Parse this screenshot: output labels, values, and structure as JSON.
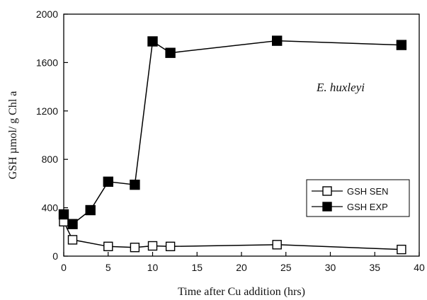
{
  "chart_data": {
    "type": "line",
    "xlabel": "Time after Cu addition (hrs)",
    "ylabel": "GSH µmol/ g Chl a",
    "annotation": "E. huxleyi",
    "xlim": [
      0,
      40
    ],
    "ylim": [
      0,
      2000
    ],
    "xticks": [
      0,
      5,
      10,
      15,
      20,
      25,
      30,
      35,
      40
    ],
    "yticks": [
      0,
      400,
      800,
      1200,
      1600,
      2000
    ],
    "legend": "right",
    "grid": false,
    "series": [
      {
        "name": "GSH SEN",
        "marker": "open-square",
        "color": "#000000",
        "x": [
          0,
          1,
          5,
          8,
          10,
          12,
          24,
          38
        ],
        "y": [
          285,
          135,
          80,
          72,
          85,
          80,
          95,
          55
        ]
      },
      {
        "name": "GSH EXP",
        "marker": "filled-square",
        "color": "#000000",
        "x": [
          0,
          1,
          3,
          5,
          8,
          10,
          12,
          24,
          38
        ],
        "y": [
          345,
          265,
          380,
          615,
          590,
          1775,
          1680,
          1780,
          1745
        ]
      }
    ]
  }
}
